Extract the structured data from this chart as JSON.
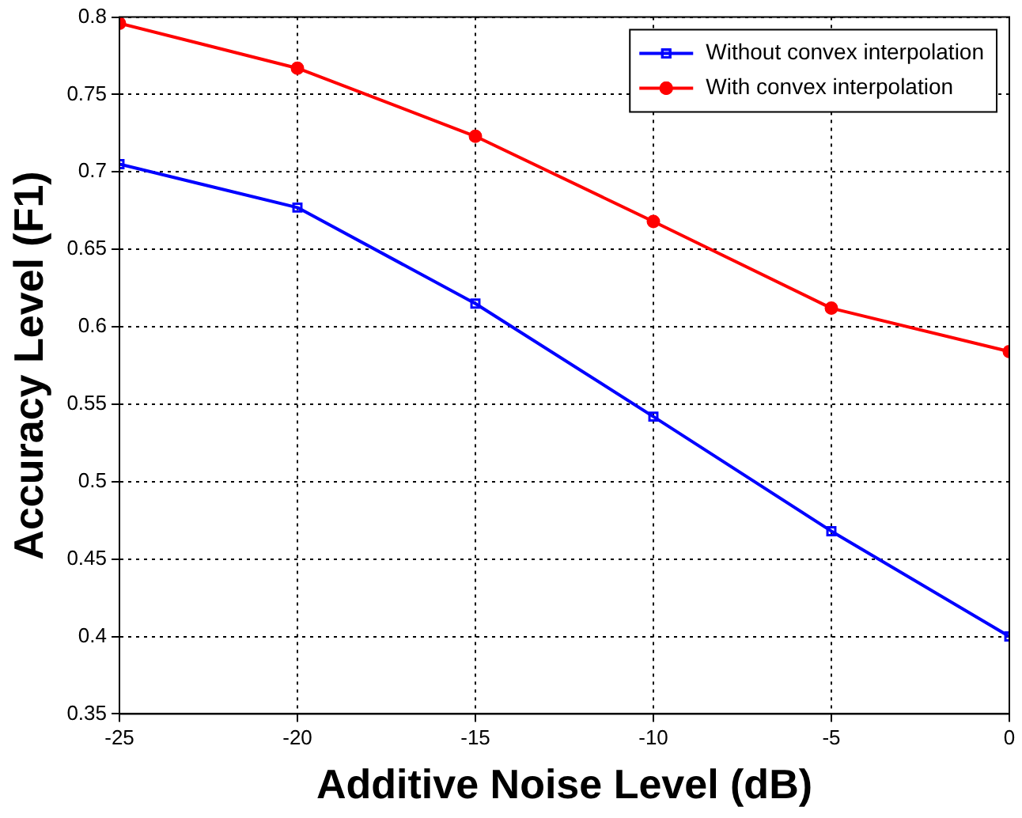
{
  "chart_data": {
    "type": "line",
    "xlabel": "Additive Noise Level (dB)",
    "ylabel": "Accuracy Level (F1)",
    "x": [
      -25,
      -20,
      -15,
      -10,
      -5,
      0
    ],
    "xlim": [
      -25,
      0
    ],
    "xticks": [
      -25,
      -20,
      -15,
      -10,
      -5,
      0
    ],
    "ylim": [
      0.35,
      0.8
    ],
    "yticks": [
      0.35,
      0.4,
      0.45,
      0.5,
      0.55,
      0.6,
      0.65,
      0.7,
      0.75,
      0.8
    ],
    "grid": true,
    "legend": "top right",
    "line_style": "solid",
    "series": [
      {
        "name": "Without convex interpolation",
        "color": "#0000ff",
        "marker": "square",
        "values": [
          0.705,
          0.677,
          0.615,
          0.542,
          0.468,
          0.4
        ]
      },
      {
        "name": "With convex interpolation",
        "color": "#ff0000",
        "marker": "circle",
        "values": [
          0.796,
          0.767,
          0.723,
          0.668,
          0.612,
          0.584
        ]
      }
    ]
  }
}
